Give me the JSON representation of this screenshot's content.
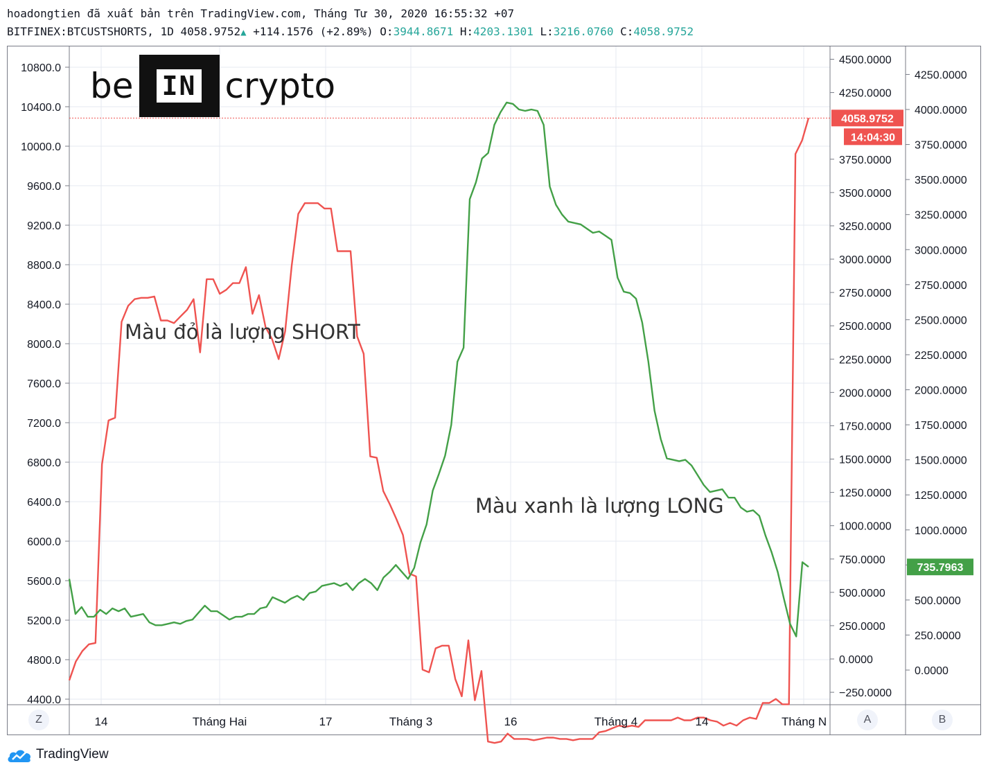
{
  "header": {
    "line1": "hoadongtien đã xuất bản trên TradingView.com, Tháng Tư 30, 2020 16:55:32 +07",
    "symbol": "BITFINEX:BTCUSTSHORTS, 1D",
    "last": "4058.9752",
    "change": "+114.1576",
    "change_pct": "(+2.89%)",
    "o_label": "O:",
    "o": "3944.8671",
    "h_label": "H:",
    "h": "4203.1301",
    "l_label": "L:",
    "l": "3216.0760",
    "c_label": "C:",
    "c": "4058.9752",
    "up_color": "#26a69a"
  },
  "logo_text": {
    "left": "be",
    "box": "IN",
    "right": "crypto"
  },
  "annotations": {
    "short": "Màu đỏ là lượng SHORT",
    "long": "Màu xanh là lượng LONG"
  },
  "badges": {
    "short_price": "4058.9752",
    "countdown": "14:04:30",
    "long_price": "735.7963",
    "short_color": "#ef5350",
    "long_color": "#43a047"
  },
  "buttons": {
    "z": "Z",
    "a": "A",
    "b": "B"
  },
  "tradingview_label": "TradingView",
  "chart_data": {
    "type": "line",
    "x_ticks": [
      "14",
      "Tháng Hai",
      "17",
      "Tháng 3",
      "16",
      "Tháng 4",
      "14",
      "Tháng N"
    ],
    "axes": {
      "left": {
        "ticks": [
          "10800.0",
          "10400.0",
          "10000.0",
          "9600.0",
          "9200.0",
          "8800.0",
          "8400.0",
          "8000.0",
          "7600.0",
          "7200.0",
          "6800.0",
          "6400.0",
          "6000.0",
          "5600.0",
          "5200.0",
          "4800.0",
          "4400.0"
        ],
        "range": [
          4400,
          10800
        ]
      },
      "right_a": {
        "ticks": [
          "4500.0000",
          "4250.0000",
          "3750.0000",
          "3500.0000",
          "3250.0000",
          "3000.0000",
          "2750.0000",
          "2500.0000",
          "2250.0000",
          "2000.0000",
          "1750.0000",
          "1500.0000",
          "1250.0000",
          "1000.0000",
          "750.0000",
          "500.0000",
          "250.0000",
          "0.0000",
          "−250.0000"
        ],
        "range": [
          -250,
          4500
        ]
      },
      "right_b": {
        "ticks": [
          "4250.0000",
          "4000.0000",
          "3750.0000",
          "3500.0000",
          "3250.0000",
          "3000.0000",
          "2750.0000",
          "2500.0000",
          "2250.0000",
          "2000.0000",
          "1750.0000",
          "1500.0000",
          "1250.0000",
          "1000.0000",
          "750.0000",
          "500.0000",
          "250.0000",
          "0.0000",
          "−250.0000"
        ],
        "range": [
          -250,
          4250
        ]
      }
    },
    "series": [
      {
        "name": "SHORT",
        "color": "#ef5350",
        "axis": "right_a",
        "values": [
          -160,
          -20,
          60,
          110,
          120,
          1460,
          1790,
          1810,
          2530,
          2650,
          2700,
          2710,
          2710,
          2720,
          2540,
          2540,
          2520,
          2570,
          2620,
          2700,
          2300,
          2850,
          2850,
          2740,
          2770,
          2820,
          2820,
          2940,
          2590,
          2730,
          2490,
          2400,
          2250,
          2460,
          2950,
          3340,
          3420,
          3420,
          3420,
          3380,
          3380,
          3060,
          3060,
          3060,
          2420,
          2290,
          1520,
          1510,
          1260,
          1160,
          1050,
          930,
          640,
          620,
          -80,
          -100,
          80,
          100,
          100,
          -150,
          -280,
          140,
          -310,
          -90,
          -620,
          -630,
          -620,
          -560,
          -600,
          -600,
          -600,
          -610,
          -600,
          -590,
          -590,
          -600,
          -600,
          -610,
          -600,
          -600,
          -600,
          -550,
          -540,
          -520,
          -500,
          -510,
          -500,
          -510,
          -460,
          -460,
          -460,
          -460,
          -460,
          -440,
          -460,
          -460,
          -440,
          -440,
          -460,
          -470,
          -500,
          -480,
          -500,
          -460,
          -440,
          -450,
          -330,
          -330,
          -300,
          -340,
          -340,
          3790,
          3890,
          4059
        ]
      },
      {
        "name": "LONG",
        "color": "#43a047",
        "axis": "right_b",
        "values": [
          650,
          400,
          450,
          380,
          380,
          430,
          400,
          440,
          420,
          440,
          380,
          390,
          400,
          340,
          320,
          320,
          330,
          340,
          330,
          350,
          360,
          410,
          460,
          420,
          420,
          390,
          360,
          380,
          380,
          400,
          400,
          440,
          450,
          520,
          500,
          480,
          510,
          530,
          500,
          550,
          560,
          600,
          610,
          620,
          600,
          620,
          570,
          620,
          650,
          620,
          570,
          660,
          700,
          750,
          700,
          650,
          730,
          910,
          1040,
          1280,
          1400,
          1530,
          1750,
          2200,
          2300,
          3360,
          3480,
          3650,
          3690,
          3890,
          3980,
          4050,
          4040,
          4000,
          3990,
          4000,
          3990,
          3890,
          3450,
          3320,
          3250,
          3200,
          3190,
          3180,
          3150,
          3120,
          3130,
          3100,
          3070,
          2800,
          2700,
          2690,
          2650,
          2480,
          2200,
          1850,
          1650,
          1510,
          1500,
          1490,
          1500,
          1460,
          1390,
          1320,
          1270,
          1280,
          1290,
          1230,
          1230,
          1160,
          1130,
          1140,
          1100,
          960,
          840,
          700,
          510,
          330,
          240,
          770,
          736
        ]
      }
    ],
    "current_price_line": 4058.9752
  }
}
